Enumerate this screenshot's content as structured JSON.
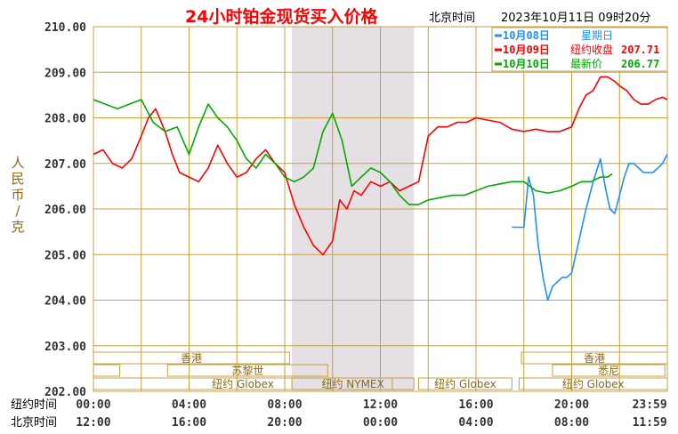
{
  "header": {
    "title": "24小时铂金现货买入价格",
    "time_label": "北京时间",
    "timestamp": "2023年10月11日 09时20分"
  },
  "legend": [
    {
      "date": "10月08日",
      "label": "星期日",
      "value": "",
      "color": "#1e90ff"
    },
    {
      "date": "10月09日",
      "label": "纽约收盘",
      "value": "207.71",
      "color": "#ff0000"
    },
    {
      "date": "10月10日",
      "label": "最新价",
      "value": "206.77",
      "color": "#00aa00"
    }
  ],
  "y_axis_title": "人民币/克",
  "row_labels": {
    "ny": "纽约时间",
    "bj": "北京时间"
  },
  "markets": {
    "hk": "香港",
    "zurich": "苏黎世",
    "sydney": "悉尼",
    "hk2": "香港",
    "globex1": "纽约 Globex",
    "nymex": "纽约 NYMEX",
    "globex2": "纽约 Globex",
    "globex3": "纽约 Globex"
  },
  "chart_data": {
    "type": "line",
    "title": "24小时铂金现货买入价格",
    "ylim": [
      202,
      210
    ],
    "xlim": [
      0,
      24
    ],
    "y_ticks": [
      "210.00",
      "209.00",
      "208.00",
      "207.00",
      "206.00",
      "205.00",
      "204.00",
      "203.00",
      "202.00"
    ],
    "x_ticks_ny": [
      "00:00",
      "04:00",
      "08:00",
      "12:00",
      "16:00",
      "20:00",
      "23:59"
    ],
    "x_ticks_bj": [
      "12:00",
      "16:00",
      "20:00",
      "00:00",
      "04:00",
      "08:00",
      "11:59"
    ],
    "grid": true,
    "series": [
      {
        "name": "10月08日",
        "color": "#1e90ff",
        "x": [
          17.5,
          17.8,
          18.0,
          18.2,
          18.4,
          18.6,
          18.8,
          19.0,
          19.2,
          19.4,
          19.6,
          19.8,
          20.0,
          20.3,
          20.6,
          20.9,
          21.2,
          21.4,
          21.6,
          21.8,
          22.0,
          22.2,
          22.4,
          22.6,
          22.8,
          23.0,
          23.2,
          23.4,
          23.6,
          23.8,
          24.0
        ],
        "y": [
          205.6,
          205.6,
          205.6,
          206.7,
          206.3,
          205.2,
          204.5,
          204.0,
          204.3,
          204.4,
          204.5,
          204.5,
          204.6,
          205.3,
          206.0,
          206.6,
          207.1,
          206.5,
          206.0,
          205.9,
          206.3,
          206.7,
          207.0,
          207.0,
          206.9,
          206.8,
          206.8,
          206.8,
          206.9,
          207.0,
          207.2
        ]
      },
      {
        "name": "10月09日",
        "color": "#ff0000",
        "x": [
          0,
          0.4,
          0.8,
          1.2,
          1.6,
          2.0,
          2.3,
          2.6,
          3.0,
          3.3,
          3.6,
          4.0,
          4.4,
          4.8,
          5.2,
          5.6,
          6.0,
          6.4,
          6.8,
          7.2,
          7.6,
          8.0,
          8.4,
          8.8,
          9.2,
          9.6,
          10.0,
          10.3,
          10.6,
          10.9,
          11.2,
          11.6,
          12.0,
          12.4,
          12.8,
          13.2,
          13.6,
          14.0,
          14.4,
          14.8,
          15.2,
          15.6,
          16.0,
          16.5,
          17.0,
          17.5,
          18.0,
          18.5,
          19.0,
          19.5,
          20.0,
          20.3,
          20.6,
          20.9,
          21.2,
          21.5,
          21.8,
          22.0,
          22.3,
          22.6,
          22.9,
          23.2,
          23.5,
          23.8,
          24.0
        ],
        "y": [
          207.2,
          207.3,
          207.0,
          206.9,
          207.1,
          207.6,
          208.0,
          208.2,
          207.7,
          207.2,
          206.8,
          206.7,
          206.6,
          206.9,
          207.4,
          207.0,
          206.7,
          206.8,
          207.1,
          207.3,
          207.0,
          206.8,
          206.1,
          205.6,
          205.2,
          205.0,
          205.3,
          206.2,
          206.0,
          206.4,
          206.3,
          206.6,
          206.5,
          206.6,
          206.4,
          206.5,
          206.6,
          207.6,
          207.8,
          207.8,
          207.9,
          207.9,
          208.0,
          207.95,
          207.9,
          207.75,
          207.7,
          207.75,
          207.7,
          207.7,
          207.8,
          208.2,
          208.5,
          208.6,
          208.9,
          208.9,
          208.8,
          208.7,
          208.6,
          208.4,
          208.3,
          208.3,
          208.4,
          208.45,
          208.4
        ]
      },
      {
        "name": "10月10日",
        "color": "#00aa00",
        "x": [
          0,
          0.5,
          1.0,
          1.5,
          2.0,
          2.5,
          3.0,
          3.5,
          4.0,
          4.4,
          4.8,
          5.2,
          5.6,
          6.0,
          6.4,
          6.8,
          7.2,
          7.6,
          8.0,
          8.4,
          8.8,
          9.2,
          9.6,
          10.0,
          10.4,
          10.8,
          11.2,
          11.6,
          12.0,
          12.4,
          12.8,
          13.2,
          13.6,
          14.0,
          14.5,
          15.0,
          15.5,
          16.0,
          16.5,
          17.0,
          17.5,
          18.0,
          18.5,
          19.0,
          19.5,
          20.0,
          20.4,
          20.8,
          21.2,
          21.5,
          21.7
        ],
        "y": [
          208.4,
          208.3,
          208.2,
          208.3,
          208.4,
          207.9,
          207.7,
          207.8,
          207.2,
          207.8,
          208.3,
          208.0,
          207.8,
          207.5,
          207.1,
          206.9,
          207.2,
          207.0,
          206.7,
          206.6,
          206.7,
          206.9,
          207.7,
          208.1,
          207.5,
          206.5,
          206.7,
          206.9,
          206.8,
          206.6,
          206.3,
          206.1,
          206.1,
          206.2,
          206.25,
          206.3,
          206.3,
          206.4,
          206.5,
          206.55,
          206.6,
          206.6,
          206.4,
          206.35,
          206.4,
          206.5,
          206.6,
          206.6,
          206.7,
          206.7,
          206.77
        ]
      }
    ]
  }
}
